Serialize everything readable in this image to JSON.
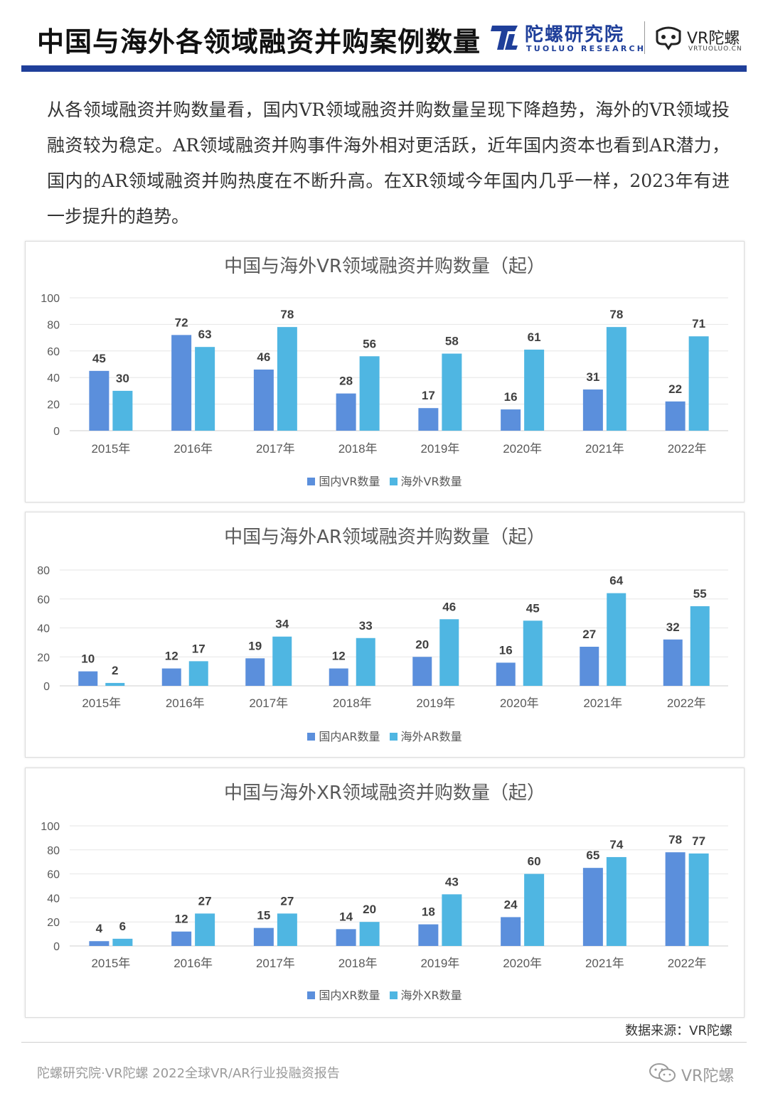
{
  "header": {
    "title": "中国与海外各领域融资并购案例数量",
    "brand_cn": "陀螺研究院",
    "brand_en": "TUOLUO RESEARCH",
    "vr_brand": "VR陀螺",
    "vr_domain": "VRTUOLUO.CN",
    "accent_color": "#1f3f9a"
  },
  "intro": "从各领域融资并购数量看，国内VR领域融资并购数量呈现下降趋势，海外的VR领域投融资较为稳定。AR领域融资并购事件海外相对更活跃，近年国内资本也看到AR潜力，国内的AR领域融资并购热度在不断升高。在XR领域今年国内几乎一样，2023年有进一步提升的趋势。",
  "chart_data": [
    {
      "type": "bar",
      "title": "中国与海外VR领域融资并购数量（起）",
      "categories": [
        "2015年",
        "2016年",
        "2017年",
        "2018年",
        "2019年",
        "2020年",
        "2021年",
        "2022年"
      ],
      "series": [
        {
          "name": "国内VR数量",
          "color": "#5b8fdc",
          "values": [
            45,
            72,
            46,
            28,
            17,
            16,
            31,
            22
          ]
        },
        {
          "name": "海外VR数量",
          "color": "#4fb6e2",
          "values": [
            30,
            63,
            78,
            56,
            58,
            61,
            78,
            71
          ]
        }
      ],
      "yticks": [
        0,
        20,
        40,
        60,
        80,
        100
      ],
      "ylim": [
        0,
        100
      ],
      "grid": true,
      "legend": "bottom-center"
    },
    {
      "type": "bar",
      "title": "中国与海外AR领域融资并购数量（起）",
      "categories": [
        "2015年",
        "2016年",
        "2017年",
        "2018年",
        "2019年",
        "2020年",
        "2021年",
        "2022年"
      ],
      "series": [
        {
          "name": "国内AR数量",
          "color": "#5b8fdc",
          "values": [
            10,
            12,
            19,
            12,
            20,
            16,
            27,
            32
          ]
        },
        {
          "name": "海外AR数量",
          "color": "#4fb6e2",
          "values": [
            2,
            17,
            34,
            33,
            46,
            45,
            64,
            55
          ]
        }
      ],
      "yticks": [
        0,
        20,
        40,
        60,
        80
      ],
      "ylim": [
        0,
        80
      ],
      "grid": true,
      "legend": "bottom-center"
    },
    {
      "type": "bar",
      "title": "中国与海外XR领域融资并购数量（起）",
      "categories": [
        "2015年",
        "2016年",
        "2017年",
        "2018年",
        "2019年",
        "2020年",
        "2021年",
        "2022年"
      ],
      "series": [
        {
          "name": "国内XR数量",
          "color": "#5b8fdc",
          "values": [
            4,
            12,
            15,
            14,
            18,
            24,
            65,
            78
          ]
        },
        {
          "name": "海外XR数量",
          "color": "#4fb6e2",
          "values": [
            6,
            27,
            27,
            20,
            43,
            60,
            74,
            77
          ]
        }
      ],
      "yticks": [
        0,
        20,
        40,
        60,
        80,
        100
      ],
      "ylim": [
        0,
        100
      ],
      "grid": true,
      "legend": "bottom-center"
    }
  ],
  "source": "数据来源：VR陀螺",
  "footer": {
    "text": "陀螺研究院·VR陀螺 2022全球VR/AR行业投融资报告",
    "wechat_name": "VR陀螺"
  }
}
